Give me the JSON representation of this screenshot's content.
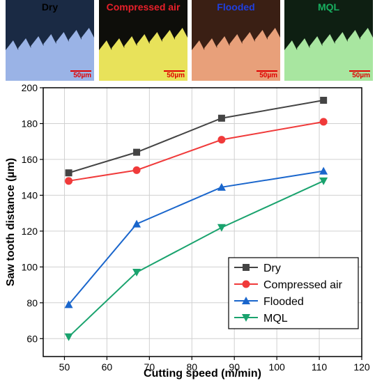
{
  "panels": [
    {
      "label": "Dry",
      "label_color": "#000000",
      "bg": "#1a2a44",
      "chip": "#9ab3e6",
      "scale": "50µm"
    },
    {
      "label": "Compressed air",
      "label_color": "#e8202a",
      "bg": "#0e0e0a",
      "chip": "#e8e25a",
      "scale": "50µm"
    },
    {
      "label": "Flooded",
      "label_color": "#1f3fe0",
      "bg": "#3a1f14",
      "chip": "#e8a07a",
      "scale": "50µm"
    },
    {
      "label": "MQL",
      "label_color": "#18b060",
      "bg": "#0e1f12",
      "chip": "#a8e6a0",
      "scale": "50µm"
    }
  ],
  "chart_data": {
    "type": "line",
    "xlabel": "Cutting speed (m/min)",
    "ylabel": "Saw tooth distance (µm)",
    "xlim": [
      45,
      120
    ],
    "ylim": [
      50,
      200
    ],
    "xticks": [
      50,
      60,
      70,
      80,
      90,
      100,
      110,
      120
    ],
    "yticks": [
      60,
      80,
      100,
      120,
      140,
      160,
      180,
      200
    ],
    "grid": true,
    "legend_position": "bottom-right",
    "x": [
      51,
      67,
      87,
      111
    ],
    "series": [
      {
        "name": "Dry",
        "values": [
          152.5,
          164,
          183,
          193
        ],
        "color": "#444444",
        "marker": "square"
      },
      {
        "name": "Compressed air",
        "values": [
          148,
          154,
          171,
          181
        ],
        "color": "#f03a3a",
        "marker": "circle"
      },
      {
        "name": "Flooded",
        "values": [
          79,
          124,
          144.5,
          153.5
        ],
        "color": "#1a66cc",
        "marker": "triangle-up"
      },
      {
        "name": "MQL",
        "values": [
          61,
          97,
          122,
          148
        ],
        "color": "#1aa36e",
        "marker": "triangle-down"
      }
    ]
  }
}
